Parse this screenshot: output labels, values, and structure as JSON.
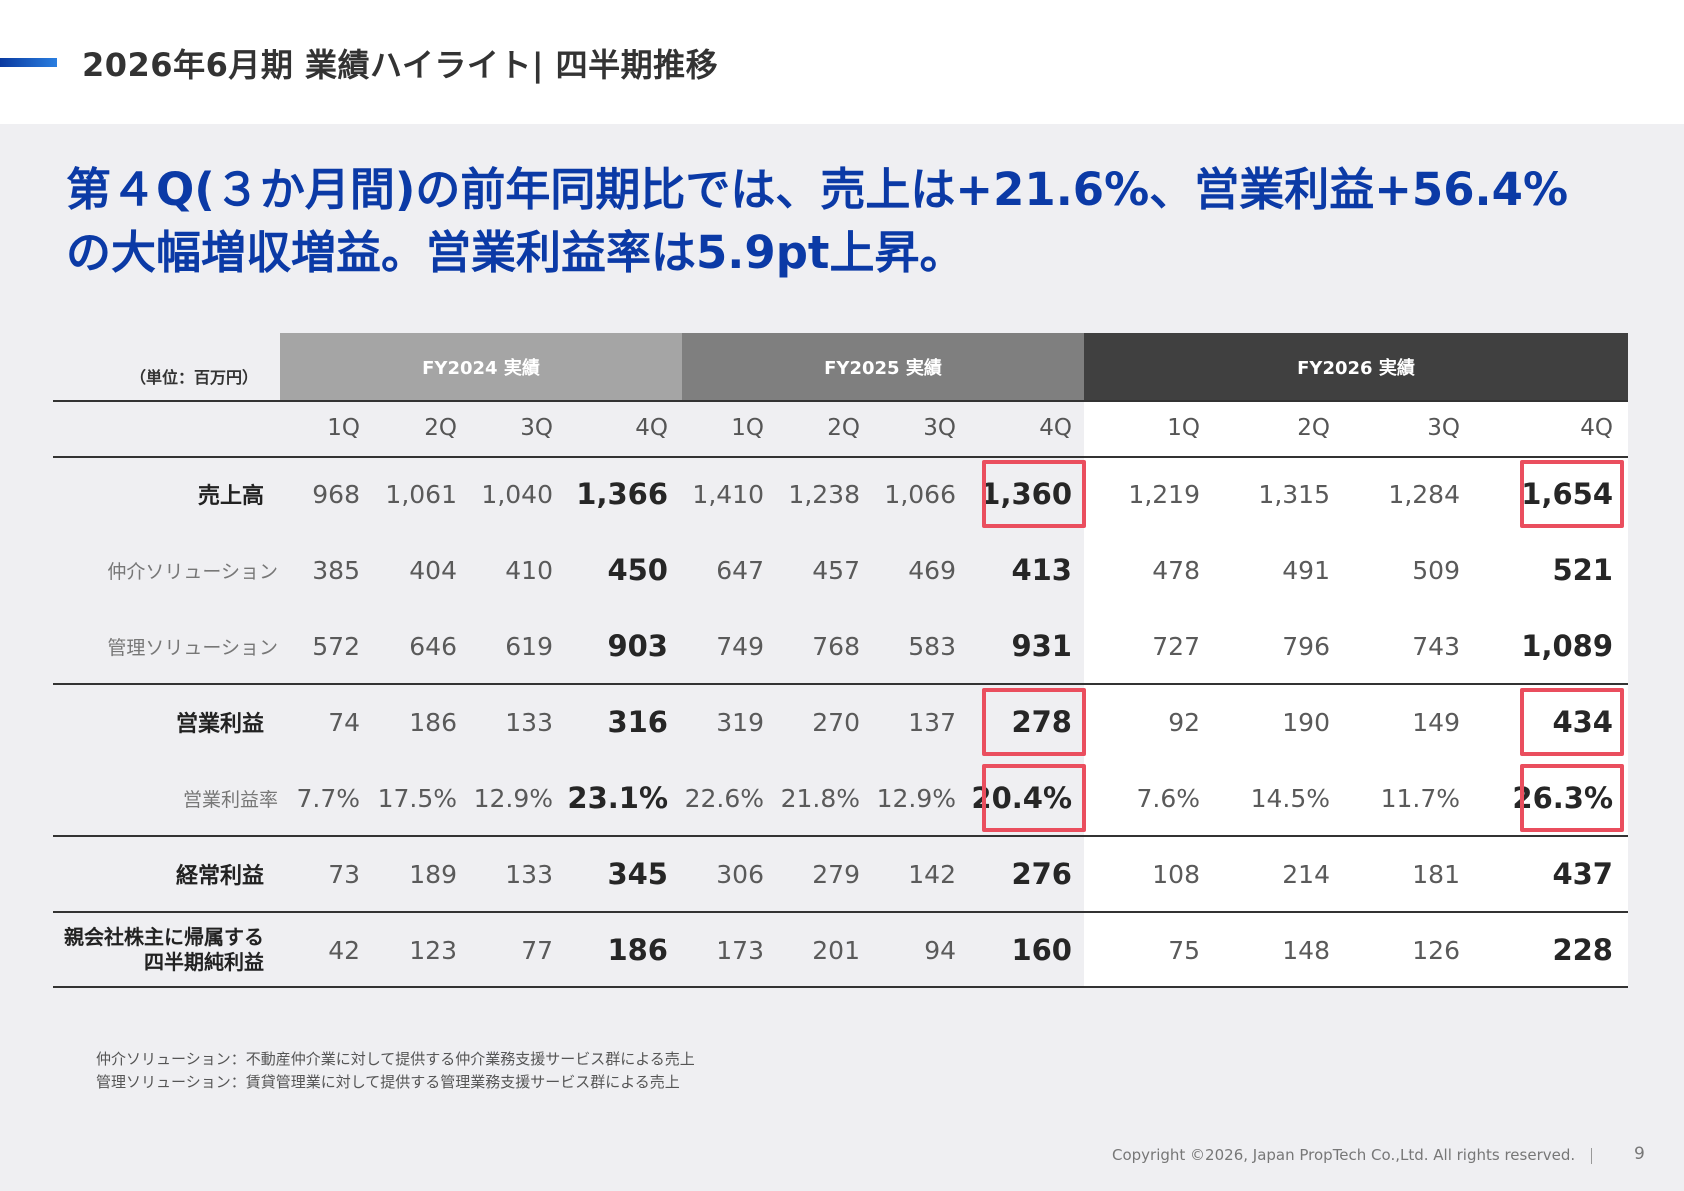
{
  "header": {
    "title": "2026年6月期 業績ハイライト| 四半期推移"
  },
  "headline": {
    "line1": "第４Q(３か月間)の前年同期比では、売上は+21.6%、営業利益+56.4%",
    "line2": "の大幅増収増益。営業利益率は5.9pt上昇。"
  },
  "table": {
    "unit_label": "（単位：百万円）",
    "fiscal_years": [
      "FY2024 実績",
      "FY2025 実績",
      "FY2026 実績"
    ],
    "quarters": [
      "1Q",
      "2Q",
      "3Q",
      "4Q",
      "1Q",
      "2Q",
      "3Q",
      "4Q",
      "1Q",
      "2Q",
      "3Q",
      "4Q"
    ],
    "rows": [
      {
        "label": "売上高",
        "values": [
          "968",
          "1,061",
          "1,040",
          "1,366",
          "1,410",
          "1,238",
          "1,066",
          "1,360",
          "1,219",
          "1,315",
          "1,284",
          "1,654"
        ]
      },
      {
        "label": "仲介ソリューション",
        "values": [
          "385",
          "404",
          "410",
          "450",
          "647",
          "457",
          "469",
          "413",
          "478",
          "491",
          "509",
          "521"
        ]
      },
      {
        "label": "管理ソリューション",
        "values": [
          "572",
          "646",
          "619",
          "903",
          "749",
          "768",
          "583",
          "931",
          "727",
          "796",
          "743",
          "1,089"
        ]
      },
      {
        "label": "営業利益",
        "values": [
          "74",
          "186",
          "133",
          "316",
          "319",
          "270",
          "137",
          "278",
          "92",
          "190",
          "149",
          "434"
        ]
      },
      {
        "label": "営業利益率",
        "values": [
          "7.7%",
          "17.5%",
          "12.9%",
          "23.1%",
          "22.6%",
          "21.8%",
          "12.9%",
          "20.4%",
          "7.6%",
          "14.5%",
          "11.7%",
          "26.3%"
        ]
      },
      {
        "label": "経常利益",
        "values": [
          "73",
          "189",
          "133",
          "345",
          "306",
          "279",
          "142",
          "276",
          "108",
          "214",
          "181",
          "437"
        ]
      },
      {
        "label_line1": "親会社株主に帰属する",
        "label_line2": "四半期純利益",
        "values": [
          "42",
          "123",
          "77",
          "186",
          "173",
          "201",
          "94",
          "160",
          "75",
          "148",
          "126",
          "228"
        ]
      }
    ],
    "highlight_color": "#ea4e5e"
  },
  "footnotes": [
    "仲介ソリューション：不動産仲介業に対して提供する仲介業務支援サービス群による売上",
    "管理ソリューション：賃貸管理業に対して提供する管理業務支援サービス群による売上"
  ],
  "footer": {
    "copyright": "Copyright ©2026, Japan PropTech Co.,Ltd. All rights reserved.",
    "page_number": "9"
  }
}
